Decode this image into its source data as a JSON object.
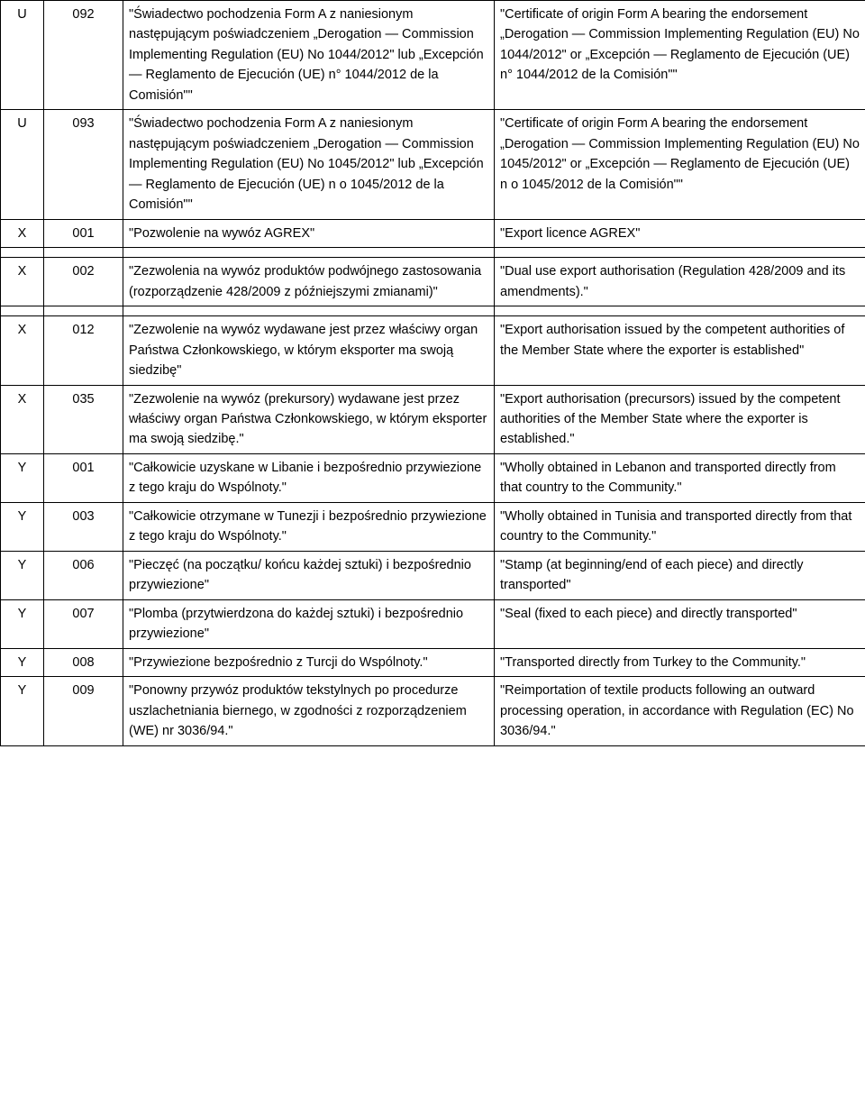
{
  "rows": {
    "r0": {
      "c1": "U",
      "c2": "092",
      "pl": "\"Świadectwo pochodzenia Form A z naniesionym następującym poświadczeniem „Derogation — Commission Implementing Regulation (EU) No 1044/2012\" lub „Excepción — Reglamento de Ejecución (UE) n° 1044/2012 de la Comisión\"\"",
      "en": "\"Certificate of origin Form A bearing the endorsement „Derogation — Commission Implementing Regulation (EU) No 1044/2012\" or „Excepción — Reglamento de Ejecución (UE) n° 1044/2012 de la Comisión\"\""
    },
    "r1": {
      "c1": "U",
      "c2": "093",
      "pl": "\"Świadectwo pochodzenia Form A z naniesionym następującym poświadczeniem „Derogation — Commission Implementing Regulation (EU) No 1045/2012\" lub „Excepción — Reglamento de Ejecución (UE) n o 1045/2012 de la Comisión\"\"",
      "en": "\"Certificate of origin Form A bearing the endorsement „Derogation — Commission Implementing Regulation (EU) No 1045/2012\" or „Excepción — Reglamento de Ejecución (UE) n o 1045/2012 de la Comisión\"\""
    },
    "r2": {
      "c1": "X",
      "c2": "001",
      "pl": "\"Pozwolenie na wywóz AGREX\"",
      "en": "\"Export licence AGREX\""
    },
    "r3": {
      "c1": "X",
      "c2": "002",
      "pl": "\"Zezwolenia na wywóz produktów podwójnego zastosowania (rozporządzenie 428/2009 z późniejszymi zmianami)\"",
      "en": "\"Dual use export authorisation (Regulation 428/2009 and its amendments).\""
    },
    "r4": {
      "c1": "X",
      "c2": "012",
      "pl": "\"Zezwolenie na wywóz wydawane jest przez właściwy organ Państwa Członkowskiego, w którym eksporter ma swoją siedzibę\"",
      "en": "\"Export authorisation issued by the competent authorities of the Member State where the exporter is established\""
    },
    "r5": {
      "c1": "X",
      "c2": "035",
      "pl": "\"Zezwolenie na wywóz (prekursory) wydawane jest przez właściwy organ Państwa Członkowskiego, w którym eksporter ma swoją siedzibę.\"",
      "en": "\"Export authorisation (precursors) issued by the competent authorities of the Member State where the exporter is established.\""
    },
    "r6": {
      "c1": "Y",
      "c2": "001",
      "pl": "\"Całkowicie uzyskane w Libanie i bezpośrednio przywiezione z tego kraju do Wspólnoty.\"",
      "en": "\"Wholly obtained in Lebanon and transported directly from that country to the Community.\""
    },
    "r7": {
      "c1": "Y",
      "c2": "003",
      "pl": "\"Całkowicie otrzymane w Tunezji i bezpośrednio przywiezione z tego kraju do Wspólnoty.\"",
      "en": "\"Wholly obtained in Tunisia and transported directly from that country to the Community.\""
    },
    "r8": {
      "c1": "Y",
      "c2": "006",
      "pl": "\"Pieczęć (na początku/ końcu każdej sztuki) i bezpośrednio przywiezione\"",
      "en": "\"Stamp (at beginning/end of each piece) and directly transported\""
    },
    "r9": {
      "c1": "Y",
      "c2": "007",
      "pl": "\"Plomba (przytwierdzona do każdej sztuki) i bezpośrednio przywiezione\"",
      "en": "\"Seal (fixed to each piece) and directly transported\""
    },
    "r10": {
      "c1": "Y",
      "c2": "008",
      "pl": "\"Przywiezione bezpośrednio z Turcji do Wspólnoty.\"",
      "en": "\"Transported directly from Turkey to the Community.\""
    },
    "r11": {
      "c1": "Y",
      "c2": "009",
      "pl": "\"Ponowny przywóz produktów tekstylnych po procedurze uszlachetniania biernego, w zgodności z rozporządzeniem (WE) nr 3036/94.\"",
      "en": "\"Reimportation of textile products following an outward processing operation, in accordance with Regulation (EC) No 3036/94.\""
    }
  }
}
